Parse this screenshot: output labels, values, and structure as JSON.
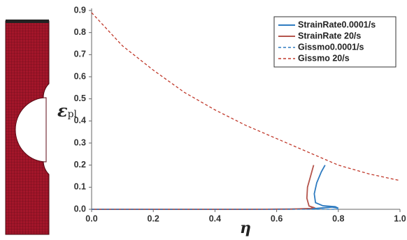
{
  "chart_data": {
    "type": "line",
    "x_label": "η",
    "y_label": {
      "symbol": "ε",
      "subscript": "pl"
    },
    "xlim": [
      0,
      1
    ],
    "ylim": [
      0,
      0.9
    ],
    "xticks": [
      {
        "value": 0,
        "label": "0.0"
      },
      0.2,
      0.4,
      0.6,
      0.8,
      {
        "value": 1,
        "label": "1.0"
      }
    ],
    "yticks": [
      {
        "value": 0,
        "label": "0.0"
      },
      0.1,
      0.2,
      0.3,
      0.4,
      0.5,
      0.6,
      0.7,
      0.8,
      0.9
    ],
    "legend": "upper right",
    "series": [
      {
        "name": "StrainRate0.0001/s",
        "color": "#2e7bc0",
        "linestyle": "solid",
        "x": [
          0,
          0.5,
          0.65,
          0.72,
          0.78,
          0.8,
          0.79,
          0.75,
          0.726,
          0.722,
          0.73,
          0.745,
          0.757
        ],
        "values": [
          0,
          0,
          0.001,
          0.003,
          0.01,
          0.005,
          0.012,
          0.016,
          0.03,
          0.07,
          0.12,
          0.17,
          0.2
        ]
      },
      {
        "name": "StrainRate 20/s",
        "color": "#b5554c",
        "linestyle": "solid",
        "x": [
          0,
          0.5,
          0.65,
          0.71,
          0.72,
          0.705,
          0.698,
          0.7,
          0.71,
          0.72
        ],
        "values": [
          0,
          0,
          0.001,
          0.004,
          0.008,
          0.015,
          0.05,
          0.1,
          0.15,
          0.2
        ]
      },
      {
        "name": "Gissmo0.0001/s",
        "color": "#2e7bc0",
        "linestyle": "dashed",
        "x": [
          0,
          0.8
        ],
        "values": [
          0,
          0
        ]
      },
      {
        "name": "Gissmo 20/s",
        "color": "#c0392b",
        "linestyle": "dashed",
        "x": [
          0,
          0.1,
          0.2,
          0.3,
          0.4,
          0.5,
          0.6,
          0.7,
          0.8,
          0.9,
          1.0
        ],
        "values": [
          0.89,
          0.74,
          0.63,
          0.53,
          0.45,
          0.38,
          0.32,
          0.26,
          0.2,
          0.16,
          0.13
        ]
      }
    ]
  }
}
